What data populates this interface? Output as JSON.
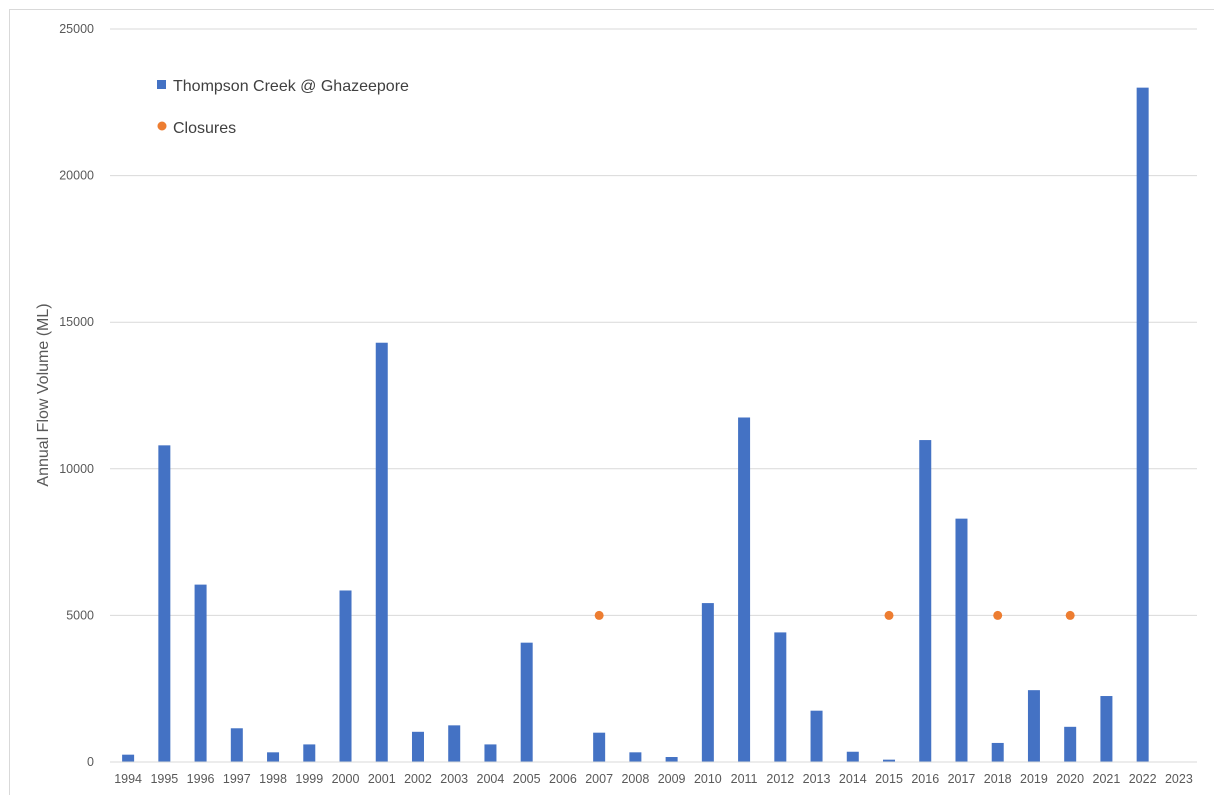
{
  "chart_data": {
    "type": "bar",
    "title": "",
    "xlabel": "",
    "ylabel": "Annual Flow Volume (ML)",
    "ylim": [
      0,
      25000
    ],
    "yticks": [
      "0",
      "5000",
      "10000",
      "15000",
      "20000",
      "25000"
    ],
    "grid": true,
    "legend_position": "top-left",
    "categories": [
      "1994",
      "1995",
      "1996",
      "1997",
      "1998",
      "1999",
      "2000",
      "2001",
      "2002",
      "2003",
      "2004",
      "2005",
      "2006",
      "2007",
      "2008",
      "2009",
      "2010",
      "2011",
      "2012",
      "2013",
      "2014",
      "2015",
      "2016",
      "2017",
      "2018",
      "2019",
      "2020",
      "2021",
      "2022",
      "2023"
    ],
    "series": [
      {
        "name": "Thompson Creek @ Ghazeepore",
        "type": "bar",
        "color": "#4472C4",
        "values": [
          250,
          10800,
          6050,
          1150,
          330,
          600,
          5850,
          14300,
          1030,
          1250,
          600,
          4070,
          0,
          1000,
          330,
          170,
          5420,
          11750,
          4420,
          1750,
          350,
          80,
          10980,
          8300,
          650,
          2450,
          1200,
          2250,
          23000,
          0
        ]
      },
      {
        "name": "Closures",
        "type": "scatter",
        "color": "#ED7D31",
        "points": [
          {
            "x": "2007",
            "y": 5000
          },
          {
            "x": "2015",
            "y": 5000
          },
          {
            "x": "2018",
            "y": 5000
          },
          {
            "x": "2020",
            "y": 5000
          }
        ]
      }
    ]
  }
}
